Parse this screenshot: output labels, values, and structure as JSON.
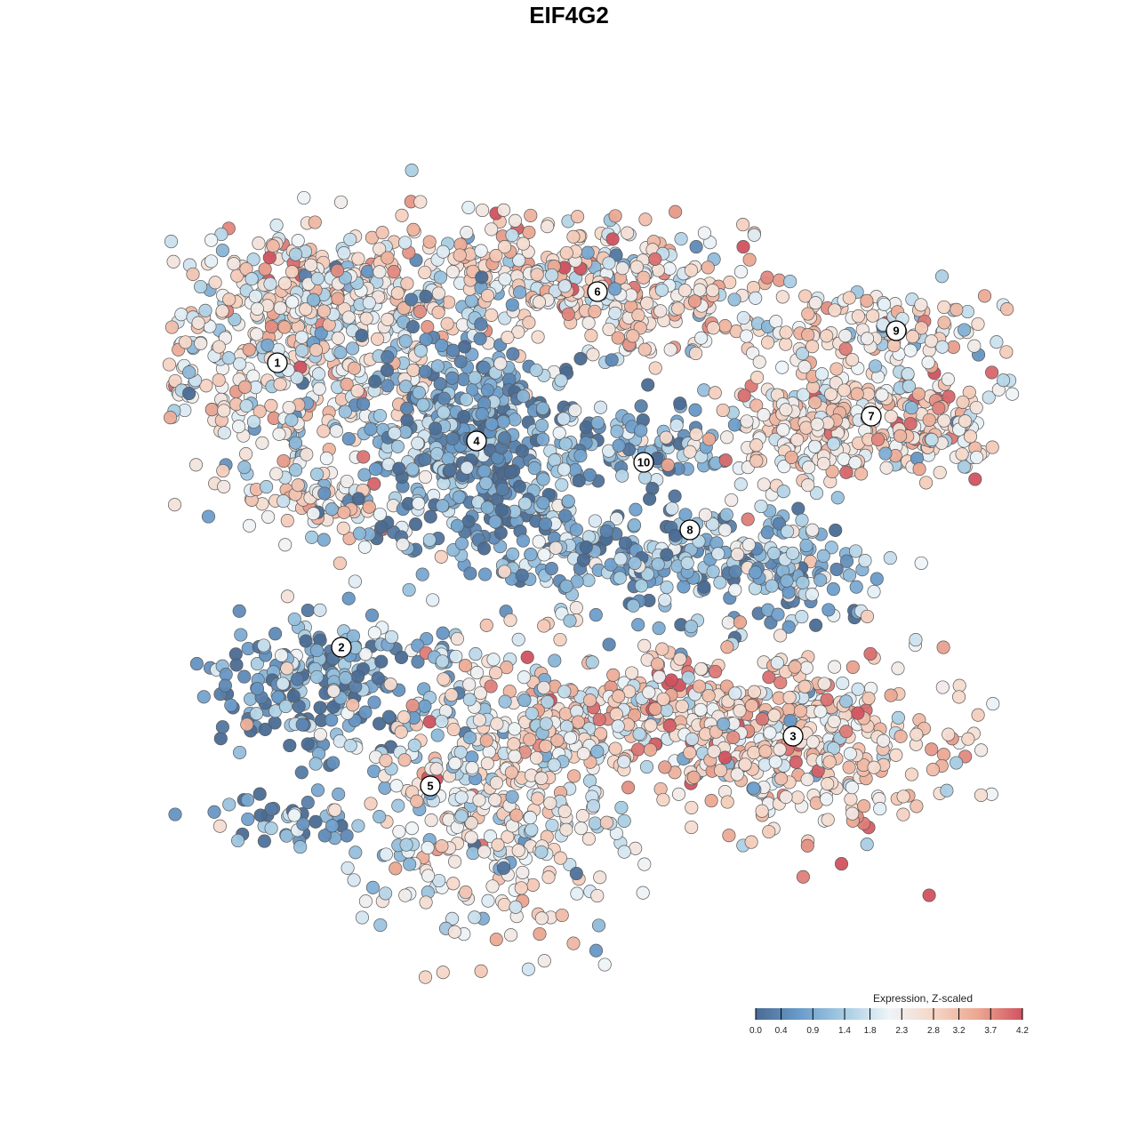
{
  "chart_data": {
    "type": "scatter",
    "title": "EIF4G2",
    "xlabel": "",
    "ylabel": "",
    "grid": false,
    "legend_placement": "bottom-right",
    "color_legend": {
      "title": "Expression, Z-scaled",
      "min": 0.0,
      "max": 4.2,
      "ticks": [
        0.0,
        0.4,
        0.9,
        1.4,
        1.8,
        2.3,
        2.8,
        3.2,
        3.7,
        4.2
      ],
      "tick_labels": [
        "0.0",
        "0.4",
        "0.9",
        "1.4",
        "1.8",
        "2.3",
        "2.8",
        "3.2",
        "3.7",
        "4.2"
      ],
      "colors": [
        "#4a6b93",
        "#6a9ccb",
        "#a7cde3",
        "#eef4f8",
        "#f6d6c6",
        "#eba791",
        "#d1525f"
      ]
    },
    "clusters": [
      {
        "label": "1",
        "x": -8.2,
        "y": 5.8,
        "mean_expr": 2.3
      },
      {
        "label": "2",
        "x": -6.4,
        "y": -2.2,
        "mean_expr": 0.6
      },
      {
        "label": "3",
        "x": 6.3,
        "y": -4.7,
        "mean_expr": 2.8
      },
      {
        "label": "4",
        "x": -2.6,
        "y": 3.6,
        "mean_expr": 0.7
      },
      {
        "label": "5",
        "x": -3.9,
        "y": -6.1,
        "mean_expr": 2.2
      },
      {
        "label": "6",
        "x": 0.8,
        "y": 7.8,
        "mean_expr": 2.6
      },
      {
        "label": "7",
        "x": 8.5,
        "y": 4.3,
        "mean_expr": 2.6
      },
      {
        "label": "8",
        "x": 3.4,
        "y": 1.1,
        "mean_expr": 1.0
      },
      {
        "label": "9",
        "x": 9.2,
        "y": 6.7,
        "mean_expr": 2.3
      },
      {
        "label": "10",
        "x": 2.1,
        "y": 3.0,
        "mean_expr": 1.0
      }
    ]
  }
}
